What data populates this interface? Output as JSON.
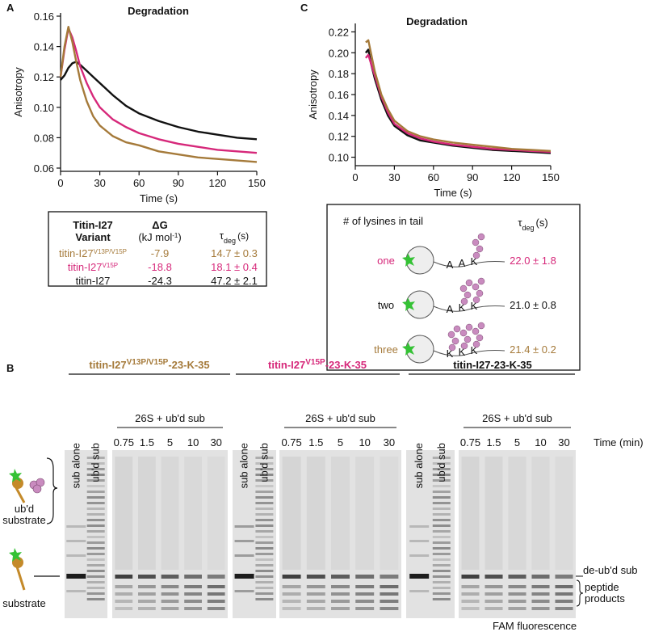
{
  "panel_labels": [
    "A",
    "B",
    "C"
  ],
  "chart_data": [
    {
      "type": "line",
      "title": "Degradation",
      "x_label": "Time (s)",
      "y_label": "Anisotropy",
      "x": [
        0,
        3,
        6,
        9,
        12,
        15,
        20,
        25,
        30,
        40,
        50,
        60,
        75,
        90,
        105,
        120,
        135,
        150
      ],
      "series": [
        {
          "color": "#111111",
          "values": [
            0.118,
            0.121,
            0.126,
            0.129,
            0.13,
            0.128,
            0.124,
            0.12,
            0.116,
            0.108,
            0.101,
            0.096,
            0.091,
            0.087,
            0.084,
            0.082,
            0.08,
            0.079
          ]
        },
        {
          "color": "#d6287a",
          "values": [
            0.12,
            0.138,
            0.152,
            0.146,
            0.137,
            0.127,
            0.116,
            0.107,
            0.1,
            0.092,
            0.087,
            0.083,
            0.079,
            0.076,
            0.074,
            0.072,
            0.071,
            0.07
          ]
        },
        {
          "color": "#a57a3a",
          "values": [
            0.12,
            0.14,
            0.153,
            0.143,
            0.13,
            0.118,
            0.104,
            0.094,
            0.088,
            0.081,
            0.077,
            0.075,
            0.071,
            0.069,
            0.067,
            0.066,
            0.065,
            0.064
          ]
        }
      ],
      "xlim": [
        0,
        150
      ],
      "xticks": [
        0,
        30,
        60,
        90,
        120,
        150
      ],
      "ylim": [
        0.06,
        0.16
      ],
      "yticks": [
        0.06,
        0.08,
        {
          "value": 0.1,
          "label": "0.10"
        },
        0.12,
        0.14,
        0.16
      ]
    },
    {
      "type": "line",
      "title": "Degradation",
      "x_label": "Time (s)",
      "y_label": "Anisotropy",
      "x": [
        8,
        10,
        12,
        15,
        20,
        25,
        30,
        40,
        50,
        60,
        75,
        90,
        105,
        120,
        135,
        150
      ],
      "series": [
        {
          "color": "#111111",
          "values": [
            0.2,
            0.203,
            0.19,
            0.175,
            0.155,
            0.14,
            0.13,
            0.121,
            0.116,
            0.114,
            0.111,
            0.109,
            0.107,
            0.106,
            0.105,
            0.104
          ]
        },
        {
          "color": "#d6287a",
          "values": [
            0.195,
            0.198,
            0.19,
            0.178,
            0.158,
            0.143,
            0.132,
            0.123,
            0.118,
            0.115,
            0.112,
            0.11,
            0.108,
            0.107,
            0.106,
            0.105
          ]
        },
        {
          "color": "#a57a3a",
          "values": [
            0.21,
            0.212,
            0.2,
            0.182,
            0.16,
            0.146,
            0.135,
            0.125,
            0.12,
            0.117,
            0.114,
            0.112,
            0.11,
            0.108,
            0.107,
            0.106
          ]
        }
      ],
      "xlim": [
        0,
        150
      ],
      "xticks": [
        0,
        30,
        60,
        90,
        120,
        150
      ],
      "ylim": [
        0.095,
        0.225
      ],
      "yticks": [
        {
          "value": 0.1,
          "label": "0.10"
        },
        0.12,
        0.14,
        0.16,
        0.18,
        {
          "value": 0.2,
          "label": "0.20"
        },
        0.22
      ]
    }
  ],
  "table_a": {
    "variant": [
      "Titin-I27",
      "Variant"
    ],
    "dg": "ΔG",
    "dg_unit": "(kJ mol",
    "dg_unit_sup": "-1",
    "dg_unit_end": ")",
    "tau": "τ",
    "tau_sub": "deg",
    "tau_unit": "(s)",
    "rows": [
      {
        "name": "titin-I27",
        "sup": "V13P/V15P",
        "dg": "-7.9",
        "tau_value": "14.7 ± 0.3",
        "color": "#a57a3a"
      },
      {
        "name": "titin-I27",
        "sup": "V15P",
        "dg": "-18.8",
        "tau_value": "18.1 ± 0.4",
        "color": "#d6287a"
      },
      {
        "name": "titin-I27",
        "dg": "-24.3",
        "tau_value": "47.2 ± 2.1",
        "color": "#111111"
      }
    ]
  },
  "table_c": {
    "header": "# of lysines in tail",
    "tau": "τ",
    "tau_sub": "deg",
    "tau_unit": "(s)",
    "rows": [
      {
        "label": "one",
        "residues": [
          "A",
          "A",
          "K"
        ],
        "tau_value": "22.0 ± 1.8",
        "color": "#d6287a",
        "label_color": "#d6287a"
      },
      {
        "label": "two",
        "residues": [
          "A",
          "K",
          "K"
        ],
        "tau_value": "21.0 ± 0.8",
        "color": "#111111",
        "label_color": "#111111"
      },
      {
        "label": "three",
        "residues": [
          "K",
          "K",
          "K"
        ],
        "tau_value": "21.4 ± 0.2",
        "color": "#a57a3a",
        "label_color": "#a57a3a"
      }
    ]
  },
  "gel": {
    "titles": [
      {
        "main": "titin-I27",
        "sup": "V13P/V15P",
        "end": "-23-K-35",
        "color": "#a57a3a"
      },
      {
        "main": "titin-I27",
        "sup": "V15P",
        "end": "-23-K-35",
        "color": "#d6287a"
      },
      {
        "main": "titin-I27-23-K-35",
        "color": "#111111"
      }
    ],
    "lanes": [
      "sub alone",
      "ub'd sub"
    ],
    "treatment": "26S + ub'd sub",
    "times": [
      "0.75",
      "1.5",
      "5",
      "10",
      "30"
    ],
    "time_unit": "Time (min)",
    "ubd_substrate": [
      "ub'd",
      "substrate"
    ],
    "substrate": "substrate",
    "deubd": "de-ub'd sub",
    "products": [
      "peptide",
      "products"
    ],
    "fam": "FAM fluorescence"
  }
}
